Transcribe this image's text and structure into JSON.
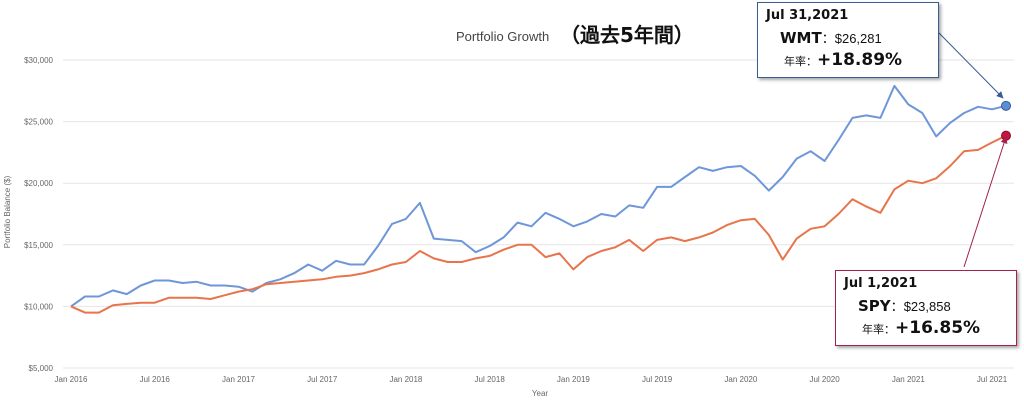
{
  "chart_data": {
    "type": "line",
    "title": "Portfolio Growth",
    "title_suffix": "（過去5年間）",
    "xlabel": "Year",
    "ylabel": "Portfolio Balance ($)",
    "ylim": [
      5000,
      30000
    ],
    "yticks": [
      5000,
      10000,
      15000,
      20000,
      25000,
      30000
    ],
    "ytick_labels": [
      "$5,000",
      "$10,000",
      "$15,000",
      "$20,000",
      "$25,000",
      "$30,000"
    ],
    "xticks": [
      "Jan 2016",
      "Jul 2016",
      "Jan 2017",
      "Jul 2017",
      "Jan 2018",
      "Jul 2018",
      "Jan 2019",
      "Jul 2019",
      "Jan 2020",
      "Jul 2020",
      "Jan 2021",
      "Jul 2021"
    ],
    "grid": true,
    "x_start": "2016-01",
    "series": [
      {
        "name": "WMT",
        "color": "#6e96d8",
        "values": [
          10000,
          10800,
          10800,
          11300,
          11000,
          11700,
          12100,
          12100,
          11900,
          12000,
          11700,
          11700,
          11600,
          11200,
          11900,
          12200,
          12700,
          13400,
          12900,
          13700,
          13400,
          13400,
          14900,
          16700,
          17100,
          18400,
          15500,
          15400,
          15300,
          14400,
          14900,
          15600,
          16800,
          16500,
          17600,
          17100,
          16500,
          16900,
          17500,
          17300,
          18200,
          18000,
          19700,
          19700,
          20500,
          21300,
          21000,
          21300,
          21400,
          20600,
          19400,
          20500,
          22000,
          22600,
          21800,
          23500,
          25300,
          25500,
          25300,
          27900,
          26400,
          25700,
          23800,
          24900,
          25700,
          26200,
          26000,
          26281
        ]
      },
      {
        "name": "SPY",
        "color": "#e8744b",
        "values": [
          10000,
          9500,
          9500,
          10100,
          10200,
          10300,
          10300,
          10700,
          10700,
          10700,
          10600,
          10900,
          11200,
          11400,
          11800,
          11900,
          12000,
          12100,
          12200,
          12400,
          12500,
          12700,
          13000,
          13400,
          13600,
          14500,
          13900,
          13600,
          13600,
          13900,
          14100,
          14600,
          15000,
          15000,
          14000,
          14300,
          13000,
          14000,
          14500,
          14800,
          15400,
          14500,
          15400,
          15600,
          15300,
          15600,
          16000,
          16600,
          17000,
          17100,
          15800,
          13800,
          15500,
          16300,
          16500,
          17500,
          18700,
          18100,
          17600,
          19500,
          20200,
          20000,
          20400,
          21400,
          22600,
          22700,
          23300,
          23858
        ]
      }
    ]
  },
  "callouts": {
    "wmt": {
      "date": "Jul 31,2021",
      "symbol": "WMT",
      "separator": "：",
      "value": "$26,281",
      "rate_label": "年率：",
      "rate": "+18.89%",
      "border_color": "#3b5b94"
    },
    "spy": {
      "date": "Jul 1,2021",
      "symbol": "SPY",
      "separator": "：",
      "value": "$23,858",
      "rate_label": "年率：",
      "rate": "+16.85%",
      "border_color": "#a3204f"
    }
  }
}
